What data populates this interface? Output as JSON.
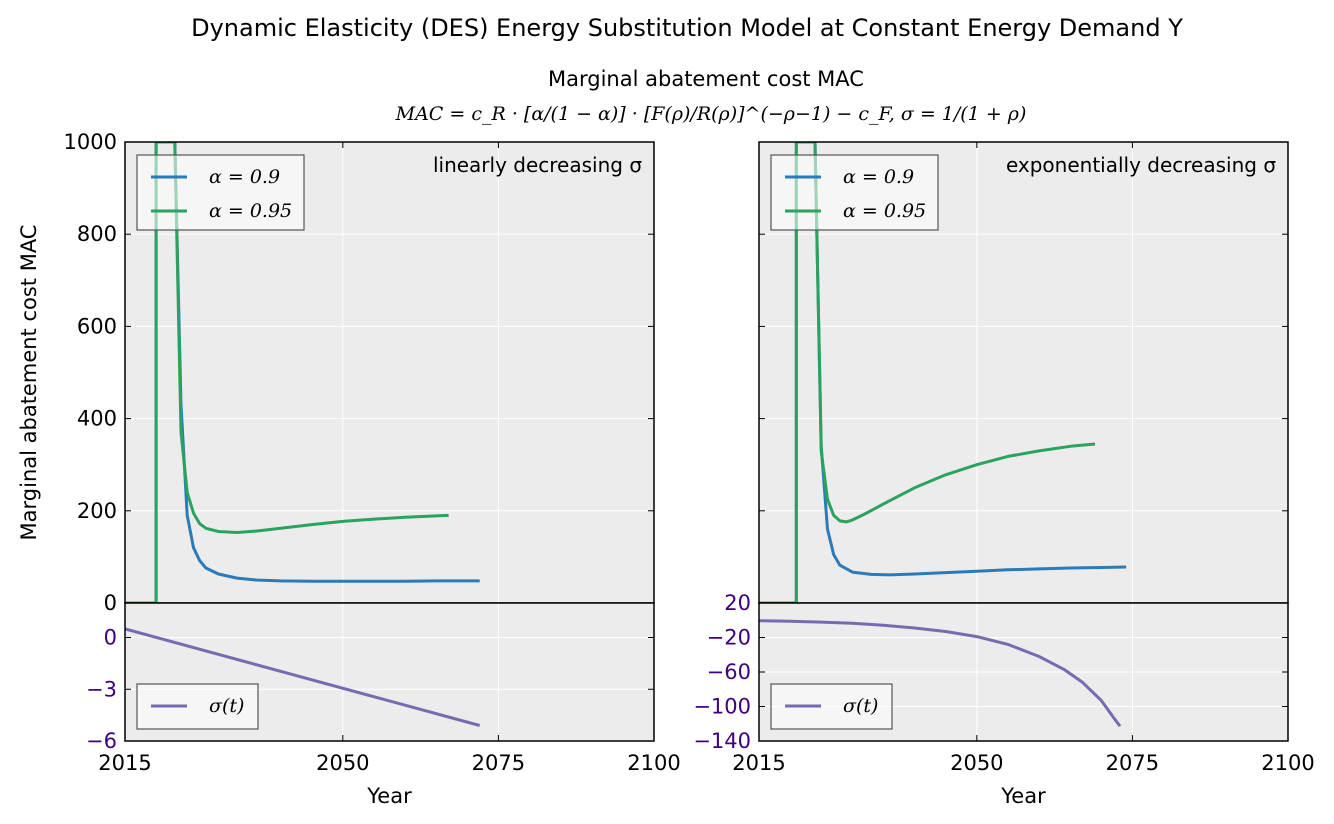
{
  "figure": {
    "title": "Dynamic Elasticity (DES) Energy Substitution Model at Constant Energy Demand Y",
    "subtitle": "Marginal abatement cost MAC",
    "formula": "MAC = c_R · [α/(1 − α)] · [F(ρ)/R(ρ)]^(−ρ−1) − c_F,  σ = 1/(1 + ρ)"
  },
  "colors": {
    "alpha_0_9": "#2b7bba",
    "alpha_0_95": "#2ca25f",
    "sigma": "#756bb1",
    "sigma_ticks": "#3f007d",
    "axes_bg": "#ececec"
  },
  "chart_data": [
    {
      "type": "line",
      "panel": "left-top",
      "annotation": "linearly decreasing σ",
      "ylabel": "Marginal abatement cost MAC",
      "xlim": [
        2015,
        2100
      ],
      "ylim": [
        0,
        1000
      ],
      "yticks": [
        "0",
        "200",
        "400",
        "600",
        "800",
        "1000"
      ],
      "grid": true,
      "legend": "top-left",
      "series": [
        {
          "name": "α = 0.9",
          "color_key": "alpha_0_9",
          "x": [
            2015,
            2020,
            2020,
            2023,
            2024,
            2025,
            2026,
            2027,
            2028,
            2030,
            2033,
            2036,
            2040,
            2045,
            2050,
            2055,
            2060,
            2065,
            2070,
            2072
          ],
          "y": [
            0,
            0,
            1000,
            1000,
            430,
            190,
            120,
            92,
            76,
            63,
            54,
            50,
            48,
            47,
            47,
            47,
            47,
            48,
            48,
            48
          ]
        },
        {
          "name": "α = 0.95",
          "color_key": "alpha_0_95",
          "x": [
            2015,
            2020,
            2020,
            2023,
            2024,
            2025,
            2026,
            2027,
            2028,
            2030,
            2033,
            2036,
            2040,
            2045,
            2050,
            2055,
            2060,
            2065,
            2067
          ],
          "y": [
            0,
            0,
            1000,
            1000,
            370,
            240,
            195,
            172,
            162,
            155,
            153,
            156,
            162,
            170,
            177,
            182,
            186,
            189,
            190
          ]
        }
      ]
    },
    {
      "type": "line",
      "panel": "left-bottom",
      "xlabel": "Year",
      "xlim": [
        2015,
        2100
      ],
      "ylim": [
        -6,
        2
      ],
      "xticks": [
        "2015",
        "2050",
        "2075",
        "2100"
      ],
      "yticks": [
        "−6",
        "−3",
        "0"
      ],
      "grid": true,
      "legend": "bottom-left",
      "series": [
        {
          "name": "σ(t)",
          "color_key": "sigma",
          "x": [
            2015,
            2072
          ],
          "y": [
            0.5,
            -5.1
          ]
        }
      ]
    },
    {
      "type": "line",
      "panel": "right-top",
      "annotation": "exponentially decreasing σ",
      "xlim": [
        2015,
        2100
      ],
      "ylim": [
        0,
        1000
      ],
      "grid": true,
      "legend": "top-left",
      "series": [
        {
          "name": "α = 0.9",
          "color_key": "alpha_0_9",
          "x": [
            2015,
            2021,
            2021,
            2024,
            2025,
            2026,
            2027,
            2028,
            2030,
            2033,
            2036,
            2040,
            2045,
            2050,
            2055,
            2060,
            2065,
            2070,
            2074
          ],
          "y": [
            0,
            0,
            1000,
            1000,
            340,
            160,
            105,
            82,
            67,
            62,
            61,
            63,
            66,
            69,
            72,
            74,
            76,
            77,
            78
          ]
        },
        {
          "name": "α = 0.95",
          "color_key": "alpha_0_95",
          "x": [
            2015,
            2021,
            2021,
            2024,
            2025,
            2026,
            2027,
            2028,
            2029,
            2030,
            2032,
            2035,
            2040,
            2045,
            2050,
            2055,
            2060,
            2065,
            2069
          ],
          "y": [
            0,
            0,
            1000,
            1000,
            330,
            225,
            190,
            178,
            176,
            180,
            193,
            215,
            250,
            278,
            300,
            318,
            330,
            340,
            345
          ]
        }
      ]
    },
    {
      "type": "line",
      "panel": "right-bottom",
      "xlabel": "Year",
      "xlim": [
        2015,
        2100
      ],
      "ylim": [
        -140,
        20
      ],
      "xticks": [
        "2015",
        "2050",
        "2075",
        "2100"
      ],
      "yticks": [
        "−140",
        "−100",
        "−60",
        "−20",
        "20"
      ],
      "grid": true,
      "legend": "bottom-left",
      "series": [
        {
          "name": "σ(t)",
          "color_key": "sigma",
          "x": [
            2015,
            2020,
            2025,
            2030,
            2035,
            2040,
            2045,
            2050,
            2055,
            2060,
            2064,
            2067,
            2070,
            2072,
            2073
          ],
          "y": [
            -0.5,
            -1.2,
            -2.2,
            -3.5,
            -5.8,
            -9,
            -13,
            -19,
            -28,
            -42,
            -57,
            -72,
            -93,
            -113,
            -123
          ]
        }
      ]
    }
  ]
}
